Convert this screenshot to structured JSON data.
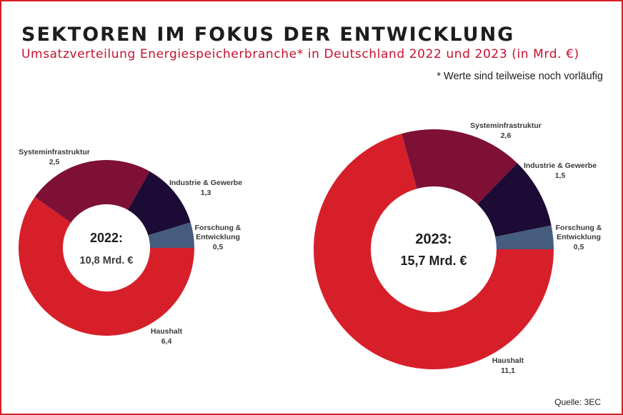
{
  "title": "SEKTOREN IM FOKUS DER ENTWICKLUNG",
  "subtitle": "Umsatzverteilung Energiespeicherbranche* in Deutschland 2022 und 2023 (in Mrd. €)",
  "footnote": "* Werte sind teilweise noch vorläufig",
  "source": "Quelle: 3EC",
  "colors": {
    "Haushalt": "#d71f2a",
    "Systeminfrastruktur": "#7e1035",
    "Industrie & Gewerbe": "#1c0b34",
    "Forschung & Entwicklung": "#455c7e"
  },
  "chart_data": [
    {
      "type": "pie",
      "title": "2022:",
      "total_label": "10,8 Mrd. €",
      "categories": [
        "Haushalt",
        "Systeminfrastruktur",
        "Industrie & Gewerbe",
        "Forschung & Entwicklung"
      ],
      "values": [
        6.4,
        2.5,
        1.3,
        0.5
      ],
      "value_labels": [
        "6,4",
        "2,5",
        "1,3",
        "0,5"
      ],
      "label_lines": [
        [
          "Haushalt"
        ],
        [
          "Systeminfrastruktur"
        ],
        [
          "Industrie & Gewerbe"
        ],
        [
          "Forschung &",
          "Entwicklung"
        ]
      ]
    },
    {
      "type": "pie",
      "title": "2023:",
      "total_label": "15,7 Mrd. €",
      "categories": [
        "Haushalt",
        "Systeminfrastruktur",
        "Industrie & Gewerbe",
        "Forschung & Entwicklung"
      ],
      "values": [
        11.1,
        2.6,
        1.5,
        0.5
      ],
      "value_labels": [
        "11,1",
        "2,6",
        "1,5",
        "0,5"
      ],
      "label_lines": [
        [
          "Haushalt"
        ],
        [
          "Systeminfrastruktur"
        ],
        [
          "Industrie & Gewerbe"
        ],
        [
          "Forschung &",
          "Entwicklung"
        ]
      ]
    }
  ]
}
